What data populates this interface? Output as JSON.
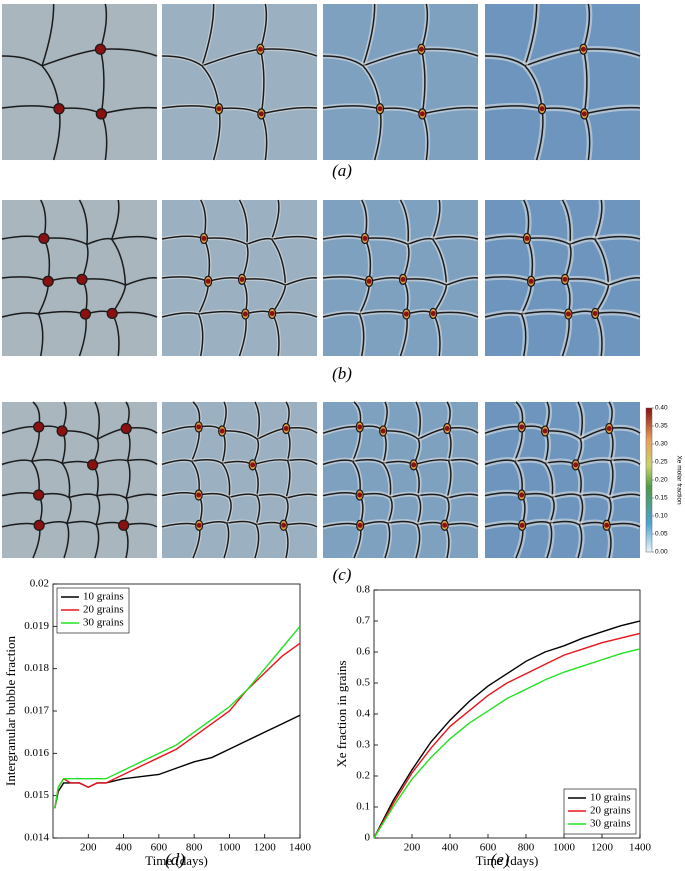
{
  "panels": {
    "labels": [
      "(a)",
      "(b)",
      "(c)"
    ]
  },
  "colorbar": {
    "title": "Xe molar fraction",
    "ticks": [
      {
        "value": 0,
        "label": "0.00"
      },
      {
        "value": 0.05,
        "label": "0.05"
      },
      {
        "value": 0.1,
        "label": "0.10"
      },
      {
        "value": 0.15,
        "label": "0.15"
      },
      {
        "value": 0.2,
        "label": "0.20"
      },
      {
        "value": 0.25,
        "label": "0.25"
      },
      {
        "value": 0.3,
        "label": "0.30"
      },
      {
        "value": 0.35,
        "label": "0.35"
      },
      {
        "value": 0.4,
        "label": "0.40"
      }
    ]
  },
  "chart_data": [
    {
      "type": "line",
      "panel_label": "(d)",
      "x_label": "Time (days)",
      "y_label": "Intergranular bubble fraction",
      "x": [
        10,
        30,
        60,
        100,
        150,
        200,
        250,
        300,
        400,
        500,
        600,
        700,
        800,
        900,
        1000,
        1100,
        1200,
        1300,
        1400
      ],
      "series": [
        {
          "name": "10 grains",
          "color": "#000000",
          "values": [
            0.0147,
            0.0151,
            0.0153,
            0.0153,
            0.0153,
            0.0152,
            0.0153,
            0.0153,
            0.0154,
            0.01545,
            0.0155,
            0.01565,
            0.0158,
            0.0159,
            0.0161,
            0.0163,
            0.0165,
            0.0167,
            0.0169
          ]
        },
        {
          "name": "20 grains",
          "color": "#e8141c",
          "values": [
            0.0147,
            0.0152,
            0.0154,
            0.0153,
            0.0153,
            0.0152,
            0.0153,
            0.0153,
            0.0155,
            0.0157,
            0.0159,
            0.0161,
            0.0164,
            0.0167,
            0.017,
            0.0175,
            0.0179,
            0.0183,
            0.0186
          ]
        },
        {
          "name": "30 grains",
          "color": "#22e322",
          "values": [
            0.0147,
            0.0152,
            0.0154,
            0.0154,
            0.0154,
            0.0154,
            0.0154,
            0.0154,
            0.0156,
            0.0158,
            0.016,
            0.0162,
            0.0165,
            0.0168,
            0.0171,
            0.0175,
            0.018,
            0.0185,
            0.019
          ]
        }
      ],
      "xlim": [
        0,
        1400
      ],
      "xticks": [
        200,
        400,
        600,
        800,
        1000,
        1200,
        1400
      ],
      "ylim": [
        0.014,
        0.02
      ],
      "yticks": [
        0.014,
        0.015,
        0.016,
        0.017,
        0.018,
        0.019,
        0.02
      ],
      "legend": "upper left"
    },
    {
      "type": "line",
      "panel_label": "(e)",
      "x_label": "Time (days)",
      "y_label": "Xe fraction in grains",
      "x": [
        0,
        100,
        200,
        300,
        400,
        500,
        600,
        700,
        800,
        900,
        1000,
        1100,
        1200,
        1300,
        1400
      ],
      "series": [
        {
          "name": "10 grains",
          "color": "#000000",
          "values": [
            0,
            0.12,
            0.22,
            0.31,
            0.38,
            0.44,
            0.49,
            0.53,
            0.57,
            0.6,
            0.62,
            0.645,
            0.665,
            0.685,
            0.7
          ]
        },
        {
          "name": "20 grains",
          "color": "#e8141c",
          "values": [
            0,
            0.11,
            0.21,
            0.29,
            0.36,
            0.41,
            0.46,
            0.5,
            0.53,
            0.56,
            0.59,
            0.61,
            0.63,
            0.645,
            0.66
          ]
        },
        {
          "name": "30 grains",
          "color": "#22e322",
          "values": [
            0,
            0.1,
            0.19,
            0.26,
            0.32,
            0.37,
            0.41,
            0.45,
            0.48,
            0.51,
            0.535,
            0.555,
            0.575,
            0.595,
            0.61
          ]
        }
      ],
      "xlim": [
        0,
        1400
      ],
      "xticks": [
        200,
        400,
        600,
        800,
        1000,
        1200,
        1400
      ],
      "ylim": [
        0,
        0.8
      ],
      "yticks": [
        0,
        0.1,
        0.2,
        0.3,
        0.4,
        0.5,
        0.6,
        0.7,
        0.8
      ],
      "legend": "lower right"
    }
  ]
}
